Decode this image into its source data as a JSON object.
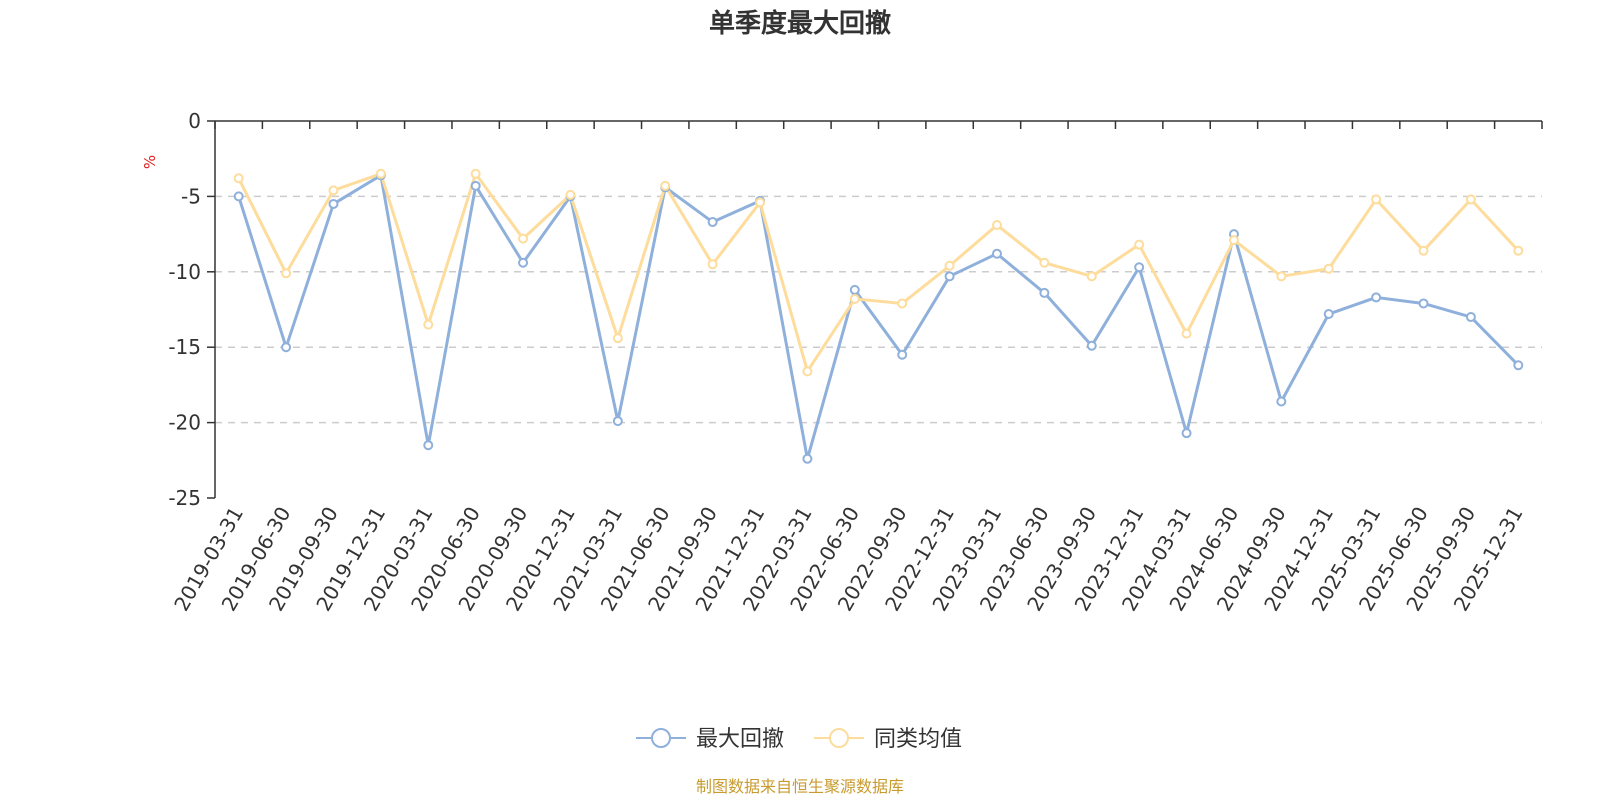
{
  "chart_data": {
    "type": "line",
    "title": "单季度最大回撤",
    "ylabel": "%",
    "ylim": [
      -25,
      0
    ],
    "yticks": [
      0,
      -5,
      -10,
      -15,
      -20,
      -25
    ],
    "ytick_labels": [
      "0",
      "-5",
      "-10",
      "-15",
      "-20",
      "-25"
    ],
    "grid": true,
    "legend_position": "bottom-center",
    "categories": [
      "2019-03-31",
      "2019-06-30",
      "2019-09-30",
      "2019-12-31",
      "2020-03-31",
      "2020-06-30",
      "2020-09-30",
      "2020-12-31",
      "2021-03-31",
      "2021-06-30",
      "2021-09-30",
      "2021-12-31",
      "2022-03-31",
      "2022-06-30",
      "2022-09-30",
      "2022-12-31",
      "2023-03-31",
      "2023-06-30",
      "2023-09-30",
      "2023-12-31",
      "2024-03-31",
      "2024-06-30",
      "2024-09-30",
      "2024-12-31",
      "2025-03-31",
      "2025-06-30",
      "2025-09-30",
      "2025-12-31"
    ],
    "series": [
      {
        "name": "最大回撤",
        "color": "#8eb0db",
        "values": [
          -5.0,
          -15.0,
          -5.5,
          -3.6,
          -21.5,
          -4.3,
          -9.4,
          -5.0,
          -19.9,
          -4.4,
          -6.7,
          -5.3,
          -22.4,
          -11.2,
          -15.5,
          -10.3,
          -8.8,
          -11.4,
          -14.9,
          -9.7,
          -20.7,
          -7.5,
          -18.6,
          -12.8,
          -11.7,
          -12.1,
          -13.0,
          -16.2
        ]
      },
      {
        "name": "同类均值",
        "color": "#fddc9c",
        "values": [
          -3.8,
          -10.1,
          -4.6,
          -3.5,
          -13.5,
          -3.5,
          -7.8,
          -4.9,
          -14.4,
          -4.3,
          -9.5,
          -5.4,
          -16.6,
          -11.8,
          -12.1,
          -9.6,
          -6.9,
          -9.4,
          -10.3,
          -8.2,
          -14.1,
          -7.9,
          -10.3,
          -9.8,
          -5.2,
          -8.6,
          -5.2,
          -8.6
        ]
      }
    ],
    "source_text": "制图数据来自恒生聚源数据库",
    "colors": {
      "axis": "#333333",
      "grid": "#cccccc",
      "unit": "#e02020",
      "source": "#c89b2e"
    }
  }
}
